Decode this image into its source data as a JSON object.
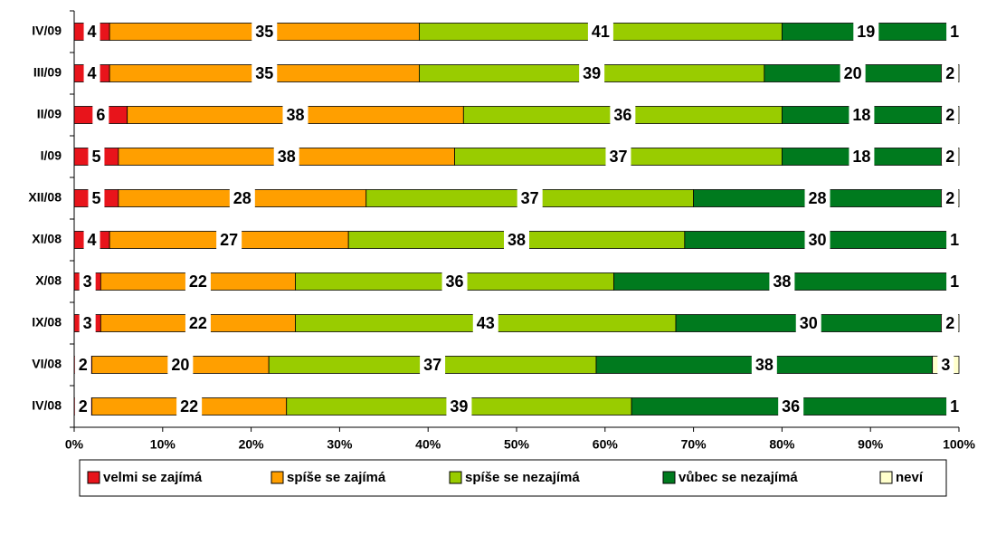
{
  "chart_data": {
    "type": "stacked-bar-horizontal",
    "categories": [
      "IV/09",
      "III/09",
      "II/09",
      "I/09",
      "XII/08",
      "XI/08",
      "X/08",
      "IX/08",
      "VI/08",
      "IV/08"
    ],
    "series": [
      {
        "name": "velmi se zajímá",
        "color": "#e8141b",
        "values": [
          4,
          4,
          6,
          5,
          5,
          4,
          3,
          3,
          2,
          2
        ]
      },
      {
        "name": "spíše se zajímá",
        "color": "#ff9f00",
        "values": [
          35,
          35,
          38,
          38,
          28,
          27,
          22,
          22,
          20,
          22
        ]
      },
      {
        "name": "spíše se nezajímá",
        "color": "#99cc00",
        "values": [
          41,
          39,
          36,
          37,
          37,
          38,
          36,
          43,
          37,
          39
        ]
      },
      {
        "name": "vůbec se nezajímá",
        "color": "#007a1e",
        "values": [
          19,
          20,
          18,
          18,
          28,
          30,
          38,
          30,
          38,
          36
        ]
      },
      {
        "name": "neví",
        "color": "#ffffcc",
        "values": [
          1,
          2,
          2,
          2,
          2,
          1,
          1,
          2,
          3,
          1
        ]
      }
    ],
    "xlim": [
      0,
      100
    ],
    "xticks": [
      {
        "value": 0,
        "label": "0%"
      },
      {
        "value": 10,
        "label": "10%"
      },
      {
        "value": 20,
        "label": "20%"
      },
      {
        "value": 30,
        "label": "30%"
      },
      {
        "value": 40,
        "label": "40%"
      },
      {
        "value": 50,
        "label": "50%"
      },
      {
        "value": 60,
        "label": "60%"
      },
      {
        "value": 70,
        "label": "70%"
      },
      {
        "value": 80,
        "label": "80%"
      },
      {
        "value": 90,
        "label": "90%"
      },
      {
        "value": 100,
        "label": "100%"
      }
    ],
    "legend": "bottom"
  }
}
